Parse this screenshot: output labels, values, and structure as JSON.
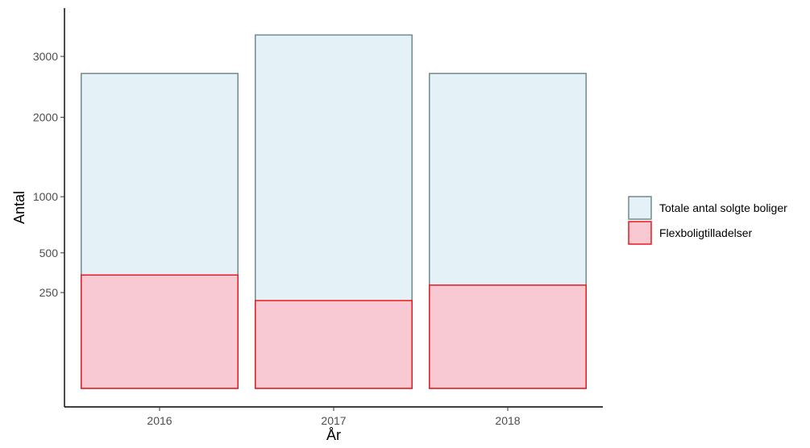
{
  "chart_data": {
    "type": "bar",
    "overlay": true,
    "categories": [
      "2016",
      "2017",
      "2018"
    ],
    "series": [
      {
        "name": "Totale antal solgte boliger",
        "values": [
          2700,
          3400,
          2700
        ],
        "fill": "#e4f2f8",
        "stroke": "#6f8a90"
      },
      {
        "name": "Flexboligtilladelser",
        "values": [
          350,
          210,
          290
        ],
        "fill": "#f9c9d3",
        "stroke": "#e8191e"
      }
    ],
    "xlabel": "År",
    "ylabel": "Antal",
    "ylim": [
      0,
      3500
    ],
    "yticks": [
      250,
      500,
      1000,
      2000,
      3000
    ],
    "legend": "right",
    "grid": false
  }
}
